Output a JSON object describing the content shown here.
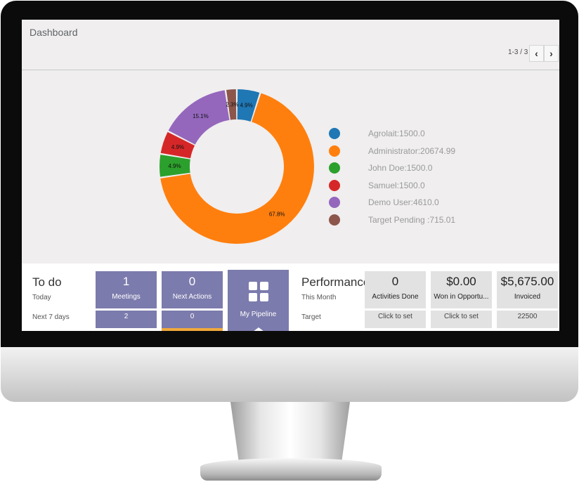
{
  "header": {
    "title": "Dashboard",
    "pager": "1-3 / 3",
    "prev_icon": "‹",
    "next_icon": "›"
  },
  "chart_data": {
    "type": "pie",
    "donut": true,
    "slices": [
      {
        "name": "Agrolait",
        "value": 1500.0,
        "legend": "Agrolait:1500.0",
        "pct_label": "4.9%",
        "color": "#1f77b4"
      },
      {
        "name": "Administrator",
        "value": 20674.99,
        "legend": "Administrator:20674.99",
        "pct_label": "67.8%",
        "color": "#ff7f0e"
      },
      {
        "name": "John Doe",
        "value": 1500.0,
        "legend": "John Doe:1500.0",
        "pct_label": "4.9%",
        "color": "#2ca02c"
      },
      {
        "name": "Samuel",
        "value": 1500.0,
        "legend": "Samuel:1500.0",
        "pct_label": "4.9%",
        "color": "#d62728"
      },
      {
        "name": "Demo User",
        "value": 4610.0,
        "legend": "Demo User:4610.0",
        "pct_label": "15.1%",
        "color": "#9467bd"
      },
      {
        "name": "Target Pending ",
        "value": 715.01,
        "legend": "Target Pending :715.01",
        "pct_label": "2.3%",
        "color": "#8c564b"
      }
    ],
    "legend_position": "right"
  },
  "todo": {
    "title": "To do",
    "today_label": "Today",
    "next7_label": "Next 7 days",
    "meetings": {
      "value": "1",
      "label": "Meetings",
      "next7": "2"
    },
    "next_actions": {
      "value": "0",
      "label": "Next Actions",
      "next7": "0"
    },
    "pipeline": {
      "label": "My Pipeline",
      "icon": "grid-icon"
    }
  },
  "performance": {
    "title": "Performance",
    "this_month_label": "This Month",
    "target_label": "Target",
    "activities": {
      "value": "0",
      "label": "Activities Done",
      "target": "Click to set"
    },
    "won": {
      "value": "$0.00",
      "label": "Won in Opportu...",
      "target": "Click to set"
    },
    "invoiced": {
      "value": "$5,675.00",
      "label": "Invoiced",
      "target": "22500"
    }
  },
  "colors": {
    "tile_purple": "#7c7bad",
    "tile_gray": "#e2e2e2",
    "accent_orange": "#f0a93b"
  }
}
